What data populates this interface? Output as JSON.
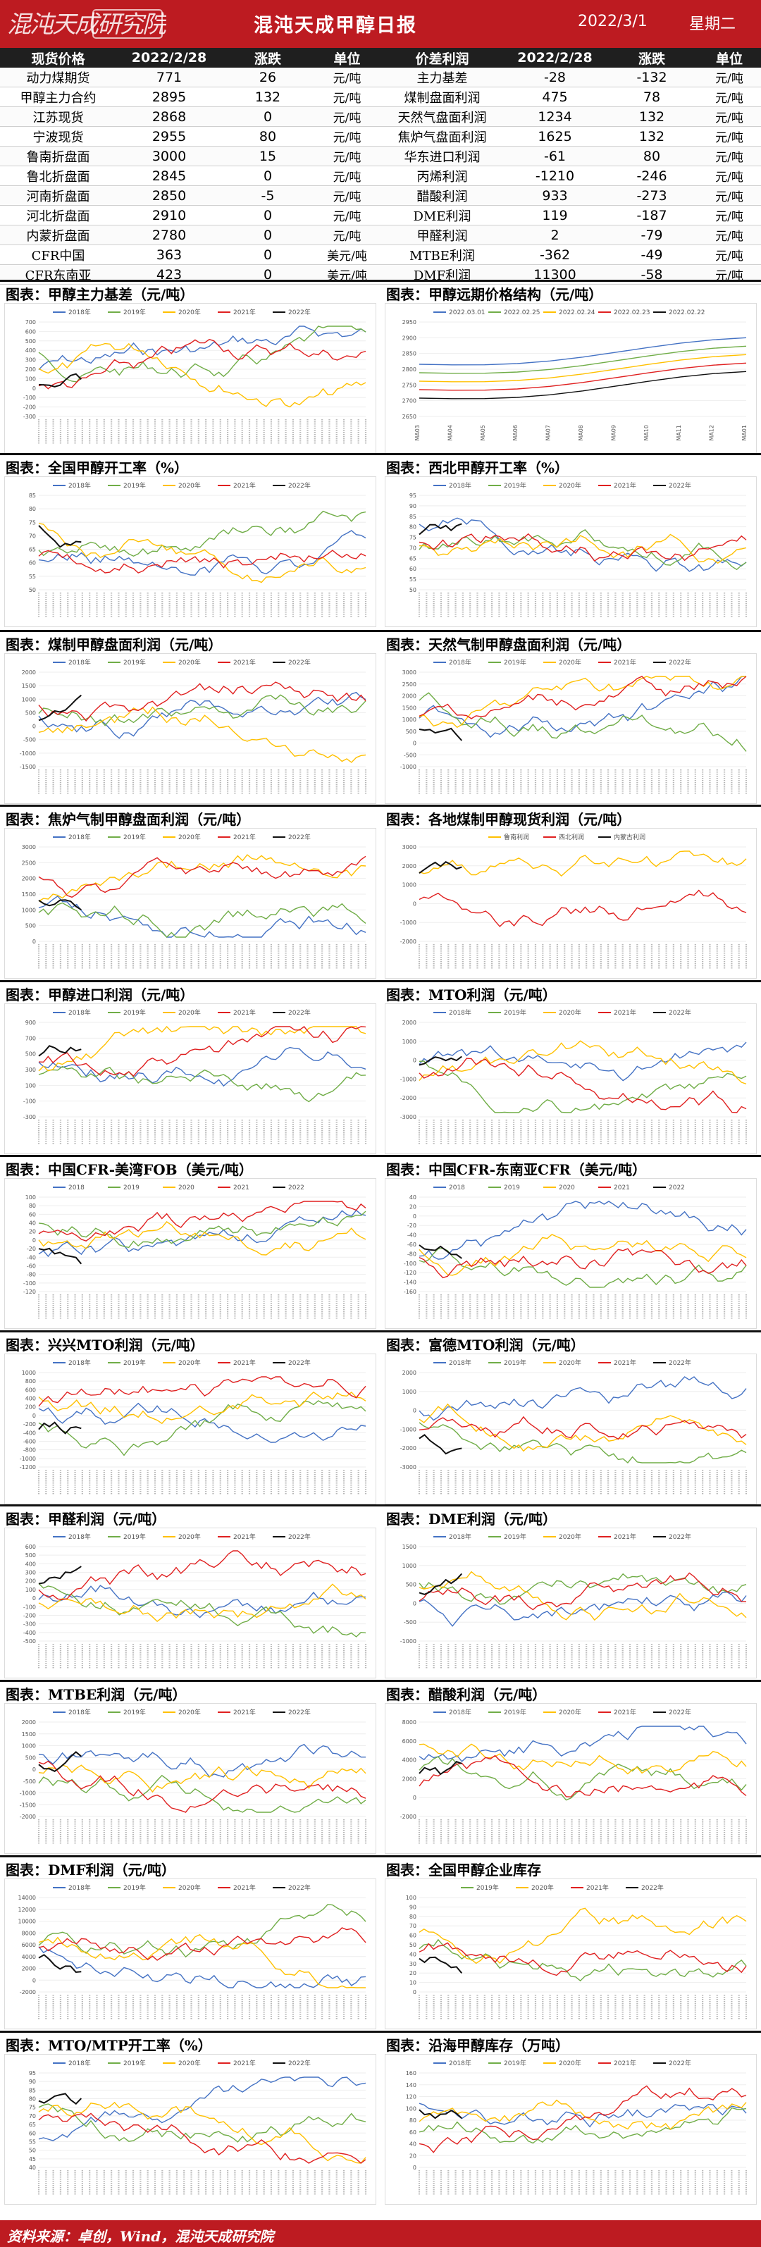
{
  "header": {
    "logo_text": "混沌天成研究院",
    "title": "混沌天成甲醇日报",
    "date": "2022/3/1",
    "weekday": "星期二"
  },
  "spot_table": {
    "headers": [
      "现货价格",
      "2022/2/28",
      "涨跌",
      "单位"
    ],
    "rows": [
      [
        "动力煤期货",
        "771",
        "26",
        "元/吨"
      ],
      [
        "甲醇主力合约",
        "2895",
        "132",
        "元/吨"
      ],
      [
        "江苏现货",
        "2868",
        "0",
        "元/吨"
      ],
      [
        "宁波现货",
        "2955",
        "80",
        "元/吨"
      ],
      [
        "鲁南折盘面",
        "3000",
        "15",
        "元/吨"
      ],
      [
        "鲁北折盘面",
        "2845",
        "0",
        "元/吨"
      ],
      [
        "河南折盘面",
        "2850",
        "-5",
        "元/吨"
      ],
      [
        "河北折盘面",
        "2910",
        "0",
        "元/吨"
      ],
      [
        "内蒙折盘面",
        "2780",
        "0",
        "元/吨"
      ],
      [
        "CFR中国",
        "363",
        "0",
        "美元/吨"
      ],
      [
        "CFR东南亚",
        "423",
        "0",
        "美元/吨"
      ]
    ]
  },
  "profit_table": {
    "headers": [
      "价差利润",
      "2022/2/28",
      "涨跌",
      "单位"
    ],
    "rows": [
      [
        "主力基差",
        "-28",
        "-132",
        "元/吨"
      ],
      [
        "煤制盘面利润",
        "475",
        "78",
        "元/吨"
      ],
      [
        "天然气盘面利润",
        "1234",
        "132",
        "元/吨"
      ],
      [
        "焦炉气盘面利润",
        "1625",
        "132",
        "元/吨"
      ],
      [
        "华东进口利润",
        "-61",
        "80",
        "元/吨"
      ],
      [
        "丙烯利润",
        "-1210",
        "-246",
        "元/吨"
      ],
      [
        "醋酸利润",
        "933",
        "-273",
        "元/吨"
      ],
      [
        "DME利润",
        "119",
        "-187",
        "元/吨"
      ],
      [
        "甲醛利润",
        "2",
        "-79",
        "元/吨"
      ],
      [
        "MTBE利润",
        "-362",
        "-49",
        "元/吨"
      ],
      [
        "DMF利润",
        "11300",
        "-58",
        "元/吨"
      ]
    ]
  },
  "colors": {
    "brand": "#bd1b21",
    "s2018": "#4472c4",
    "s2019": "#70ad47",
    "s2020": "#ffc000",
    "s2021": "#e02020",
    "s2022": "#111111",
    "grey": "#a5a5a5"
  },
  "charts": [
    {
      "title": "图表：甲醇主力基差（元/吨）",
      "chart_data": {
        "type": "line",
        "series_names": [
          "2018年",
          "2019年",
          "2020年",
          "2021年",
          "2022年"
        ],
        "ylim": [
          -300,
          700
        ],
        "yticks": [
          "700",
          "600",
          "500",
          "400",
          "300",
          "200",
          "100",
          "0",
          "-100",
          "-200",
          "-300"
        ]
      }
    },
    {
      "title": "图表：甲醇远期价格结构（元/吨）",
      "chart_data": {
        "type": "line",
        "series_names": [
          "2022.03.01",
          "2022.02.25",
          "2022.02.24",
          "2022.02.23",
          "2022.02.22"
        ],
        "ylim": [
          2650,
          2950
        ],
        "yticks": [
          "2950",
          "2900",
          "2850",
          "2800",
          "2750",
          "2700",
          "2650"
        ],
        "categories": [
          "MA03",
          "MA04",
          "MA05",
          "MA06",
          "MA07",
          "MA08",
          "MA09",
          "MA10",
          "MA11",
          "MA12",
          "MA01"
        ]
      }
    },
    {
      "title": "图表：全国甲醇开工率（%）",
      "chart_data": {
        "type": "line",
        "series_names": [
          "2018年",
          "2019年",
          "2020年",
          "2021年",
          "2022年"
        ],
        "ylim": [
          50,
          85
        ],
        "yticks": [
          "85",
          "80",
          "75",
          "70",
          "65",
          "60",
          "55",
          "50"
        ]
      }
    },
    {
      "title": "图表：西北甲醇开工率（%）",
      "chart_data": {
        "type": "line",
        "series_names": [
          "2018年",
          "2019年",
          "2020年",
          "2021年",
          "2022年"
        ],
        "ylim": [
          50,
          95
        ],
        "yticks": [
          "95",
          "90",
          "85",
          "80",
          "75",
          "70",
          "65",
          "60",
          "55",
          "50"
        ]
      }
    },
    {
      "title": "图表：煤制甲醇盘面利润（元/吨）",
      "chart_data": {
        "type": "line",
        "series_names": [
          "2018年",
          "2019年",
          "2020年",
          "2021年",
          "2022年"
        ],
        "ylim": [
          -1500,
          2000
        ],
        "yticks": [
          "2000",
          "1500",
          "1000",
          "500",
          "0",
          "-500",
          "-1000",
          "-1500"
        ]
      }
    },
    {
      "title": "图表：天然气制甲醇盘面利润（元/吨）",
      "chart_data": {
        "type": "line",
        "series_names": [
          "2018年",
          "2019年",
          "2020年",
          "2021年",
          "2022年"
        ],
        "ylim": [
          -1000,
          3000
        ],
        "yticks": [
          "3000",
          "2500",
          "2000",
          "1500",
          "1000",
          "500",
          "0",
          "-500",
          "-1000"
        ]
      }
    },
    {
      "title": "图表：焦炉气制甲醇盘面利润（元/吨）",
      "chart_data": {
        "type": "line",
        "series_names": [
          "2018年",
          "2019年",
          "2020年",
          "2021年",
          "2022年"
        ],
        "ylim": [
          0,
          3000
        ],
        "yticks": [
          "3000",
          "2500",
          "2000",
          "1500",
          "1000",
          "500",
          "0"
        ]
      }
    },
    {
      "title": "图表：各地煤制甲醇现货利润（元/吨）",
      "chart_data": {
        "type": "line",
        "series_names": [
          "鲁南利润",
          "西北利润",
          "内蒙古利润"
        ],
        "ylim": [
          -2000,
          3000
        ],
        "yticks": [
          "3000",
          "2000",
          "1000",
          "0",
          "-1000",
          "-2000"
        ]
      }
    },
    {
      "title": "图表：甲醇进口利润（元/吨）",
      "chart_data": {
        "type": "line",
        "series_names": [
          "2018年",
          "2019年",
          "2020年",
          "2021年",
          "2022年"
        ],
        "ylim": [
          -300,
          900
        ],
        "yticks": [
          "900",
          "700",
          "500",
          "300",
          "100",
          "-100",
          "-300"
        ]
      }
    },
    {
      "title": "图表：MTO利润（元/吨）",
      "chart_data": {
        "type": "line",
        "series_names": [
          "2018年",
          "2019年",
          "2020年",
          "2021年",
          "2022年"
        ],
        "ylim": [
          -3000,
          2000
        ],
        "yticks": [
          "2000",
          "1000",
          "0",
          "-1000",
          "-2000",
          "-3000"
        ]
      }
    },
    {
      "title": "图表：中国CFR-美湾FOB（美元/吨）",
      "chart_data": {
        "type": "line",
        "series_names": [
          "2018",
          "2019",
          "2020",
          "2021",
          "2022"
        ],
        "ylim": [
          -120,
          100
        ],
        "yticks": [
          "100",
          "80",
          "60",
          "40",
          "20",
          "0",
          "-20",
          "-40",
          "-60",
          "-80",
          "-100",
          "-120"
        ]
      }
    },
    {
      "title": "图表：中国CFR-东南亚CFR（美元/吨）",
      "chart_data": {
        "type": "line",
        "series_names": [
          "2018",
          "2019",
          "2020",
          "2021",
          "2022"
        ],
        "ylim": [
          -160,
          40
        ],
        "yticks": [
          "40",
          "20",
          "0",
          "-20",
          "-40",
          "-60",
          "-80",
          "-100",
          "-120",
          "-140",
          "-160"
        ]
      }
    },
    {
      "title": "图表：兴兴MTO利润（元/吨）",
      "chart_data": {
        "type": "line",
        "series_names": [
          "2018年",
          "2019年",
          "2020年",
          "2021年",
          "2022年"
        ],
        "ylim": [
          -1200,
          1000
        ],
        "yticks": [
          "1000",
          "800",
          "600",
          "400",
          "200",
          "0",
          "-200",
          "-400",
          "-600",
          "-800",
          "-1000",
          "-1200"
        ]
      }
    },
    {
      "title": "图表：富德MTO利润（元/吨）",
      "chart_data": {
        "type": "line",
        "series_names": [
          "2018年",
          "2019年",
          "2020年",
          "2021年",
          "2022年"
        ],
        "ylim": [
          -3000,
          2000
        ],
        "yticks": [
          "2000",
          "1000",
          "0",
          "-1000",
          "-2000",
          "-3000"
        ]
      }
    },
    {
      "title": "图表：甲醛利润（元/吨）",
      "chart_data": {
        "type": "line",
        "series_names": [
          "2018年",
          "2019年",
          "2020年",
          "2021年",
          "2022年"
        ],
        "ylim": [
          -500,
          600
        ],
        "yticks": [
          "600",
          "500",
          "400",
          "300",
          "200",
          "100",
          "0",
          "-100",
          "-200",
          "-300",
          "-400",
          "-500"
        ]
      }
    },
    {
      "title": "图表：DME利润（元/吨）",
      "chart_data": {
        "type": "line",
        "series_names": [
          "2018年",
          "2019年",
          "2020年",
          "2021年",
          "2022年"
        ],
        "ylim": [
          -1000,
          1500
        ],
        "yticks": [
          "1500",
          "1000",
          "500",
          "0",
          "-500",
          "-1000"
        ]
      }
    },
    {
      "title": "图表：MTBE利润（元/吨）",
      "chart_data": {
        "type": "line",
        "series_names": [
          "2018年",
          "2019年",
          "2020年",
          "2021年",
          "2022年"
        ],
        "ylim": [
          -2000,
          2000
        ],
        "yticks": [
          "2000",
          "1500",
          "1000",
          "500",
          "0",
          "-500",
          "-1000",
          "-1500",
          "-2000"
        ]
      }
    },
    {
      "title": "图表：醋酸利润（元/吨）",
      "chart_data": {
        "type": "line",
        "series_names": [
          "2018年",
          "2019年",
          "2020年",
          "2021年",
          "2022年"
        ],
        "ylim": [
          -2000,
          8000
        ],
        "yticks": [
          "8000",
          "6000",
          "4000",
          "2000",
          "0",
          "-2000"
        ]
      }
    },
    {
      "title": "图表：DMF利润（元/吨）",
      "chart_data": {
        "type": "line",
        "series_names": [
          "2018年",
          "2019年",
          "2020年",
          "2021年",
          "2022年"
        ],
        "ylim": [
          -2000,
          14000
        ],
        "yticks": [
          "14000",
          "12000",
          "10000",
          "8000",
          "6000",
          "4000",
          "2000",
          "0",
          "-2000"
        ]
      }
    },
    {
      "title": "图表：全国甲醇企业库存",
      "chart_data": {
        "type": "line",
        "series_names": [
          "2019年",
          "2020年",
          "2021年",
          "2022年"
        ],
        "ylim": [
          0,
          100
        ],
        "yticks": [
          "100",
          "90",
          "80",
          "70",
          "60",
          "50",
          "40",
          "30",
          "20",
          "10",
          "0"
        ]
      }
    },
    {
      "title": "图表：MTO/MTP开工率（%）",
      "chart_data": {
        "type": "line",
        "series_names": [
          "2018年",
          "2019年",
          "2020年",
          "2021年",
          "2022年"
        ],
        "ylim": [
          40,
          95
        ],
        "yticks": [
          "95",
          "90",
          "85",
          "80",
          "75",
          "70",
          "65",
          "60",
          "55",
          "50",
          "45",
          "40"
        ]
      }
    },
    {
      "title": "图表：沿海甲醇库存（万吨）",
      "chart_data": {
        "type": "line",
        "series_names": [
          "2018年",
          "2019年",
          "2020年",
          "2021年",
          "2022年"
        ],
        "ylim": [
          0,
          160
        ],
        "yticks": [
          "160",
          "140",
          "120",
          "100",
          "80",
          "60",
          "40",
          "20",
          "0"
        ]
      }
    }
  ],
  "footer": {
    "source": "资料来源：卓创，Wind，混沌天成研究院"
  }
}
